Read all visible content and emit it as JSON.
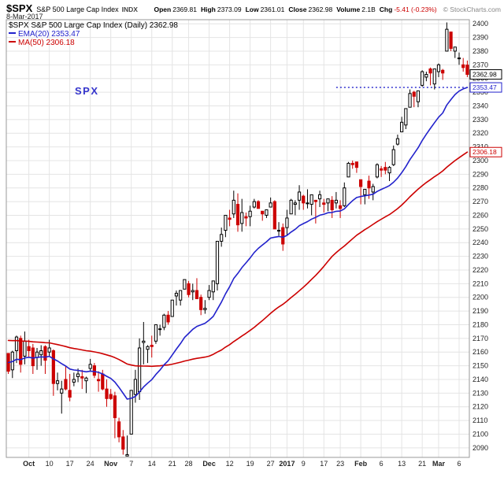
{
  "header": {
    "symbol": "$SPX",
    "name": "S&P 500 Large Cap Index",
    "exchange": "INDX",
    "date": "8-Mar-2017",
    "copyright": "© StockCharts.com",
    "quote": [
      {
        "label": "Open",
        "value": "2369.81",
        "negative": false
      },
      {
        "label": "High",
        "value": "2373.09",
        "negative": false
      },
      {
        "label": "Low",
        "value": "2361.01",
        "negative": false
      },
      {
        "label": "Close",
        "value": "2362.98",
        "negative": false
      },
      {
        "label": "Volume",
        "value": "2.1B",
        "negative": false
      },
      {
        "label": "Chg",
        "value": "-5.41 (-0.23%)",
        "negative": true
      }
    ]
  },
  "legend": {
    "main": "$SPX S&P 500 Large Cap Index (Daily) 2362.98",
    "ema": "EMA(20) 2353.47",
    "ma": "MA(50) 2306.18"
  },
  "watermark": "SPX",
  "price_labels": [
    {
      "text": "2362.98",
      "value": 2362.98,
      "color": "#000000"
    },
    {
      "text": "2353.47",
      "value": 2353.47,
      "color": "#2222cc"
    },
    {
      "text": "2306.18",
      "value": 2306.18,
      "color": "#cc0000"
    }
  ],
  "chart_data": {
    "type": "candlestick",
    "title": "$SPX S&P 500 Large Cap Index (Daily)",
    "ylabel": "Price",
    "y_axis": {
      "min": 2090,
      "max": 2400,
      "step": 10,
      "domain": [
        2083,
        2403
      ]
    },
    "grid": true,
    "up_color": "#000000",
    "down_color": "#cc0000",
    "annotation_line": {
      "value": 2353.47,
      "style": "dotted",
      "color": "#2222cc",
      "from_bar": 80
    },
    "overlays": {
      "ema20": {
        "label": "EMA(20)",
        "period": 20,
        "value": 2353.47,
        "color": "#2222cc",
        "start": 2153
      },
      "ma50": {
        "label": "MA(50)",
        "period": 50,
        "value": 2306.18,
        "color": "#cc0000",
        "prior_mean": 2169
      }
    },
    "x_labels": [
      {
        "label": "Oct",
        "bar": 5
      },
      {
        "label": "10",
        "bar": 10
      },
      {
        "label": "17",
        "bar": 15
      },
      {
        "label": "24",
        "bar": 20
      },
      {
        "label": "Nov",
        "bar": 25
      },
      {
        "label": "7",
        "bar": 30
      },
      {
        "label": "14",
        "bar": 35
      },
      {
        "label": "21",
        "bar": 40
      },
      {
        "label": "28",
        "bar": 44
      },
      {
        "label": "Dec",
        "bar": 49
      },
      {
        "label": "12",
        "bar": 54
      },
      {
        "label": "19",
        "bar": 59
      },
      {
        "label": "27",
        "bar": 64
      },
      {
        "label": "2017",
        "bar": 68
      },
      {
        "label": "9",
        "bar": 72
      },
      {
        "label": "17",
        "bar": 77
      },
      {
        "label": "23",
        "bar": 81
      },
      {
        "label": "Feb",
        "bar": 86
      },
      {
        "label": "6",
        "bar": 91
      },
      {
        "label": "13",
        "bar": 96
      },
      {
        "label": "21",
        "bar": 101
      },
      {
        "label": "Mar",
        "bar": 105
      },
      {
        "label": "6",
        "bar": 110
      }
    ],
    "ohlc": [
      [
        "2016-09-26",
        2159,
        2159,
        2144,
        2146
      ],
      [
        "2016-09-27",
        2147,
        2161,
        2141,
        2160
      ],
      [
        "2016-09-28",
        2161,
        2172,
        2152,
        2171
      ],
      [
        "2016-09-29",
        2170,
        2172,
        2145,
        2151
      ],
      [
        "2016-09-30",
        2157,
        2175,
        2151,
        2168
      ],
      [
        "2016-10-03",
        2164,
        2169,
        2156,
        2161
      ],
      [
        "2016-10-04",
        2163,
        2166,
        2144,
        2150
      ],
      [
        "2016-10-05",
        2156,
        2163,
        2147,
        2160
      ],
      [
        "2016-10-06",
        2158,
        2165,
        2150,
        2161
      ],
      [
        "2016-10-07",
        2164,
        2165,
        2144,
        2154
      ],
      [
        "2016-10-10",
        2160,
        2169,
        2157,
        2163
      ],
      [
        "2016-10-11",
        2161,
        2162,
        2128,
        2137
      ],
      [
        "2016-10-12",
        2137,
        2145,
        2132,
        2139
      ],
      [
        "2016-10-13",
        2130,
        2139,
        2115,
        2133
      ],
      [
        "2016-10-14",
        2140,
        2150,
        2132,
        2133
      ],
      [
        "2016-10-17",
        2132,
        2144,
        2124,
        2127
      ],
      [
        "2016-10-18",
        2138,
        2145,
        2135,
        2140
      ],
      [
        "2016-10-19",
        2142,
        2148,
        2138,
        2144
      ],
      [
        "2016-10-20",
        2142,
        2147,
        2133,
        2141
      ],
      [
        "2016-10-21",
        2139,
        2142,
        2130,
        2141
      ],
      [
        "2016-10-24",
        2148,
        2155,
        2146,
        2151
      ],
      [
        "2016-10-25",
        2150,
        2152,
        2141,
        2143
      ],
      [
        "2016-10-26",
        2140,
        2146,
        2131,
        2139
      ],
      [
        "2016-10-27",
        2144,
        2147,
        2132,
        2133
      ],
      [
        "2016-10-28",
        2133,
        2140,
        2120,
        2126
      ],
      [
        "2016-10-31",
        2129,
        2133,
        2125,
        2126
      ],
      [
        "2016-11-01",
        2128,
        2131,
        2097,
        2112
      ],
      [
        "2016-11-02",
        2109,
        2112,
        2094,
        2098
      ],
      [
        "2016-11-03",
        2098,
        2103,
        2085,
        2089
      ],
      [
        "2016-11-04",
        2084,
        2099,
        2084,
        2085
      ],
      [
        "2016-11-07",
        2100,
        2132,
        2100,
        2132
      ],
      [
        "2016-11-08",
        2129,
        2147,
        2123,
        2140
      ],
      [
        "2016-11-09",
        2131,
        2170,
        2125,
        2163
      ],
      [
        "2016-11-10",
        2167,
        2182,
        2151,
        2168
      ],
      [
        "2016-11-11",
        2162,
        2165,
        2152,
        2164
      ],
      [
        "2016-11-14",
        2165,
        2172,
        2156,
        2164
      ],
      [
        "2016-11-15",
        2168,
        2180,
        2166,
        2180
      ],
      [
        "2016-11-16",
        2177,
        2180,
        2172,
        2177
      ],
      [
        "2016-11-17",
        2178,
        2188,
        2176,
        2187
      ],
      [
        "2016-11-18",
        2187,
        2190,
        2180,
        2182
      ],
      [
        "2016-11-21",
        2186,
        2198,
        2186,
        2198
      ],
      [
        "2016-11-22",
        2201,
        2205,
        2194,
        2203
      ],
      [
        "2016-11-23",
        2198,
        2205,
        2194,
        2205
      ],
      [
        "2016-11-25",
        2206,
        2213,
        2206,
        2213
      ],
      [
        "2016-11-28",
        2210,
        2212,
        2200,
        2202
      ],
      [
        "2016-11-29",
        2204,
        2210,
        2198,
        2205
      ],
      [
        "2016-11-30",
        2205,
        2214,
        2199,
        2199
      ],
      [
        "2016-12-01",
        2200,
        2202,
        2187,
        2191
      ],
      [
        "2016-12-02",
        2191,
        2198,
        2188,
        2192
      ],
      [
        "2016-12-05",
        2200,
        2209,
        2198,
        2205
      ],
      [
        "2016-12-06",
        2204,
        2212,
        2198,
        2212
      ],
      [
        "2016-12-07",
        2210,
        2241,
        2205,
        2241
      ],
      [
        "2016-12-08",
        2241,
        2251,
        2237,
        2246
      ],
      [
        "2016-12-09",
        2249,
        2259,
        2244,
        2260
      ],
      [
        "2016-12-12",
        2258,
        2264,
        2252,
        2257
      ],
      [
        "2016-12-13",
        2261,
        2278,
        2258,
        2271
      ],
      [
        "2016-12-14",
        2268,
        2276,
        2248,
        2253
      ],
      [
        "2016-12-15",
        2254,
        2272,
        2248,
        2262
      ],
      [
        "2016-12-16",
        2259,
        2262,
        2252,
        2258
      ],
      [
        "2016-12-19",
        2259,
        2267,
        2252,
        2263
      ],
      [
        "2016-12-20",
        2266,
        2272,
        2265,
        2270
      ],
      [
        "2016-12-21",
        2270,
        2271,
        2265,
        2265
      ],
      [
        "2016-12-22",
        2263,
        2263,
        2256,
        2261
      ],
      [
        "2016-12-23",
        2260,
        2264,
        2258,
        2264
      ],
      [
        "2016-12-27",
        2266,
        2273,
        2266,
        2269
      ],
      [
        "2016-12-28",
        2270,
        2271,
        2250,
        2250
      ],
      [
        "2016-12-29",
        2249,
        2255,
        2245,
        2249
      ],
      [
        "2016-12-30",
        2251,
        2254,
        2234,
        2239
      ],
      [
        "2017-01-03",
        2251,
        2264,
        2245,
        2258
      ],
      [
        "2017-01-04",
        2261,
        2272,
        2261,
        2271
      ],
      [
        "2017-01-05",
        2268,
        2271,
        2260,
        2269
      ],
      [
        "2017-01-06",
        2271,
        2282,
        2264,
        2277
      ],
      [
        "2017-01-09",
        2274,
        2275,
        2264,
        2269
      ],
      [
        "2017-01-10",
        2269,
        2279,
        2265,
        2269
      ],
      [
        "2017-01-11",
        2268,
        2275,
        2260,
        2275
      ],
      [
        "2017-01-12",
        2271,
        2271,
        2254,
        2270
      ],
      [
        "2017-01-13",
        2272,
        2278,
        2266,
        2275
      ],
      [
        "2017-01-17",
        2269,
        2272,
        2262,
        2268
      ],
      [
        "2017-01-18",
        2269,
        2272,
        2263,
        2272
      ],
      [
        "2017-01-19",
        2271,
        2274,
        2258,
        2264
      ],
      [
        "2017-01-20",
        2269,
        2277,
        2265,
        2271
      ],
      [
        "2017-01-23",
        2267,
        2271,
        2258,
        2265
      ],
      [
        "2017-01-24",
        2267,
        2284,
        2266,
        2280
      ],
      [
        "2017-01-25",
        2288,
        2299,
        2288,
        2298
      ],
      [
        "2017-01-26",
        2298,
        2300,
        2294,
        2297
      ],
      [
        "2017-01-27",
        2299,
        2299,
        2291,
        2295
      ],
      [
        "2017-01-30",
        2286,
        2286,
        2268,
        2281
      ],
      [
        "2017-01-31",
        2275,
        2279,
        2268,
        2279
      ],
      [
        "2017-02-01",
        2285,
        2289,
        2272,
        2280
      ],
      [
        "2017-02-02",
        2277,
        2283,
        2271,
        2281
      ],
      [
        "2017-02-03",
        2288,
        2298,
        2287,
        2297
      ],
      [
        "2017-02-06",
        2294,
        2296,
        2288,
        2293
      ],
      [
        "2017-02-07",
        2295,
        2299,
        2290,
        2293
      ],
      [
        "2017-02-08",
        2291,
        2296,
        2285,
        2295
      ],
      [
        "2017-02-09",
        2297,
        2311,
        2296,
        2308
      ],
      [
        "2017-02-10",
        2312,
        2319,
        2311,
        2316
      ],
      [
        "2017-02-13",
        2321,
        2332,
        2321,
        2328
      ],
      [
        "2017-02-14",
        2326,
        2338,
        2323,
        2338
      ],
      [
        "2017-02-15",
        2339,
        2352,
        2339,
        2349
      ],
      [
        "2017-02-16",
        2350,
        2351,
        2339,
        2347
      ],
      [
        "2017-02-17",
        2343,
        2351,
        2339,
        2351
      ],
      [
        "2017-02-21",
        2355,
        2366,
        2354,
        2365
      ],
      [
        "2017-02-22",
        2361,
        2365,
        2358,
        2363
      ],
      [
        "2017-02-23",
        2367,
        2368,
        2355,
        2364
      ],
      [
        "2017-02-24",
        2356,
        2367,
        2352,
        2367
      ],
      [
        "2017-02-27",
        2365,
        2371,
        2361,
        2370
      ],
      [
        "2017-02-28",
        2366,
        2367,
        2359,
        2364
      ],
      [
        "2017-03-01",
        2380,
        2401,
        2380,
        2396
      ],
      [
        "2017-03-02",
        2394,
        2394,
        2380,
        2382
      ],
      [
        "2017-03-03",
        2380,
        2383,
        2375,
        2383
      ],
      [
        "2017-03-06",
        2375,
        2379,
        2370,
        2375
      ],
      [
        "2017-03-07",
        2370,
        2375,
        2365,
        2368
      ],
      [
        "2017-03-08",
        2369.81,
        2373.09,
        2361.01,
        2362.98
      ]
    ]
  }
}
